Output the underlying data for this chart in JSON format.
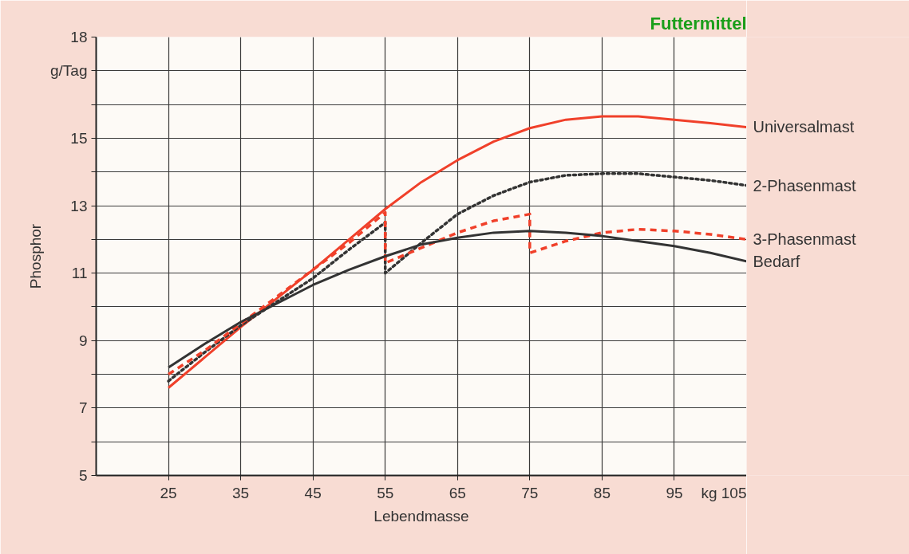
{
  "chart_data": {
    "type": "line",
    "title": "Futtermittel",
    "xlabel": "Lebendmasse",
    "ylabel": "Phosphor",
    "xlim": [
      15,
      105
    ],
    "ylim": [
      5,
      18
    ],
    "xticks": [
      25,
      35,
      45,
      55,
      65,
      75,
      85,
      {
        "value": 95,
        "label": "95"
      },
      {
        "value": 105,
        "label": "kg 105"
      }
    ],
    "yticks": [
      5,
      {
        "value": 6,
        "label": null
      },
      7,
      {
        "value": 8,
        "label": null
      },
      9,
      {
        "value": 10,
        "label": null
      },
      11,
      {
        "value": 12,
        "label": null
      },
      13,
      {
        "value": 14,
        "label": null
      },
      15,
      {
        "value": 16,
        "label": null
      },
      {
        "value": 17,
        "label": "g/Tag"
      },
      18
    ],
    "grid": true,
    "legend": false,
    "marker": "none",
    "series": [
      {
        "name": "Universalmast",
        "color": "#f0402a",
        "line_style": "solid",
        "x": [
          25,
          30,
          35,
          40,
          45,
          50,
          55,
          60,
          65,
          70,
          75,
          80,
          85,
          90,
          95,
          100,
          105
        ],
        "values": [
          7.6,
          8.5,
          9.4,
          10.25,
          11.1,
          12.0,
          12.9,
          13.7,
          14.35,
          14.9,
          15.3,
          15.55,
          15.65,
          15.65,
          15.55,
          15.45,
          15.33
        ]
      },
      {
        "name": "2-Phasenmast",
        "color": "#333333",
        "line_style": "dotted",
        "x": [
          25,
          30,
          35,
          40,
          45,
          50,
          55,
          55,
          60,
          65,
          70,
          75,
          80,
          85,
          90,
          95,
          100,
          105
        ],
        "values": [
          7.8,
          8.65,
          9.45,
          10.15,
          10.85,
          11.7,
          12.5,
          11.0,
          11.9,
          12.75,
          13.3,
          13.7,
          13.9,
          13.95,
          13.95,
          13.85,
          13.75,
          13.6
        ]
      },
      {
        "name": "3-Phasenmast",
        "color": "#f0402a",
        "line_style": "dashed",
        "x": [
          25,
          30,
          35,
          40,
          45,
          50,
          55,
          55,
          60,
          65,
          70,
          75,
          75,
          80,
          85,
          90,
          95,
          100,
          105
        ],
        "values": [
          8.0,
          8.7,
          9.5,
          10.3,
          11.1,
          11.9,
          12.8,
          11.3,
          11.75,
          12.2,
          12.55,
          12.75,
          11.6,
          11.95,
          12.2,
          12.3,
          12.25,
          12.15,
          12.0
        ]
      },
      {
        "name": "Bedarf",
        "color": "#333333",
        "line_style": "solid",
        "x": [
          25,
          30,
          35,
          40,
          45,
          50,
          55,
          60,
          65,
          70,
          75,
          80,
          85,
          90,
          95,
          100,
          105
        ],
        "values": [
          8.2,
          8.9,
          9.55,
          10.1,
          10.65,
          11.1,
          11.5,
          11.85,
          12.05,
          12.2,
          12.25,
          12.2,
          12.1,
          11.95,
          11.8,
          11.6,
          11.35
        ]
      }
    ]
  }
}
